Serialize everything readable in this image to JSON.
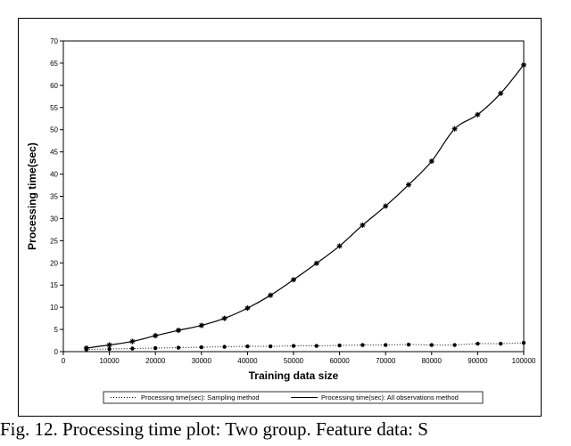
{
  "caption": "Fig. 12. Processing time plot: Two group. Feature data: S",
  "chart_data": {
    "type": "line",
    "title": "",
    "xlabel": "Training data size",
    "ylabel": "Processing time(sec)",
    "xlim": [
      0,
      100000
    ],
    "ylim": [
      0,
      70
    ],
    "xticks": [
      "0",
      "10000",
      "20000",
      "30000",
      "40000",
      "50000",
      "60000",
      "70000",
      "80000",
      "90000",
      "100000"
    ],
    "yticks": [
      "0",
      "5",
      "10",
      "15",
      "20",
      "25",
      "30",
      "35",
      "40",
      "45",
      "50",
      "55",
      "60",
      "65",
      "70"
    ],
    "grid": false,
    "legend_position": "bottom",
    "x": [
      5000,
      10000,
      15000,
      20000,
      25000,
      30000,
      35000,
      40000,
      45000,
      50000,
      55000,
      60000,
      65000,
      70000,
      75000,
      80000,
      85000,
      90000,
      95000,
      100000
    ],
    "series": [
      {
        "name": "Processing time(sec): Sampling method",
        "style": "dotted",
        "marker": "circle",
        "values": [
          0.5,
          0.6,
          0.7,
          0.8,
          0.9,
          1.0,
          1.1,
          1.2,
          1.2,
          1.3,
          1.3,
          1.4,
          1.5,
          1.5,
          1.6,
          1.5,
          1.5,
          1.8,
          1.8,
          2.0
        ]
      },
      {
        "name": "Processing time(sec): All observations method",
        "style": "solid",
        "marker": "star",
        "values": [
          0.8,
          1.5,
          2.3,
          3.6,
          4.8,
          5.9,
          7.5,
          9.8,
          12.7,
          16.2,
          19.9,
          23.8,
          28.5,
          32.8,
          37.6,
          42.9,
          50.2,
          53.4,
          58.2,
          64.6
        ]
      }
    ]
  }
}
